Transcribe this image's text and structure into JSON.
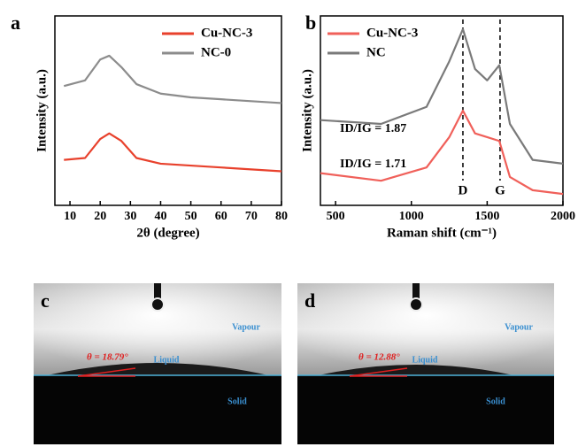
{
  "chart_data": [
    {
      "type": "line",
      "panel": "a",
      "x_label": "2θ (degree)",
      "y_label": "Intensity (a.u.)",
      "xlim": [
        5,
        80
      ],
      "ylim": [
        0,
        100
      ],
      "xticks": [
        10,
        20,
        30,
        40,
        50,
        60,
        70,
        80
      ],
      "legend": "upper right",
      "x": [
        8,
        15,
        20,
        23,
        27,
        32,
        40,
        50,
        60,
        70,
        80
      ],
      "series": [
        {
          "name": "Cu-NC-3",
          "color": "#e8412c",
          "values": [
            24,
            25,
            35,
            38,
            34,
            25,
            22,
            21,
            20,
            19,
            18
          ]
        },
        {
          "name": "NC-0",
          "color": "#8c8c8c",
          "values": [
            63,
            66,
            77,
            79,
            73,
            64,
            59,
            57,
            56,
            55,
            54
          ]
        }
      ]
    },
    {
      "type": "line",
      "panel": "b",
      "x_label": "Raman shift (cm⁻¹)",
      "y_label": "Intensity (a.u.)",
      "xlim": [
        400,
        2000
      ],
      "ylim": [
        0,
        100
      ],
      "xticks": [
        500,
        1000,
        1500,
        2000
      ],
      "legend": "upper left",
      "x": [
        400,
        800,
        1100,
        1250,
        1340,
        1420,
        1500,
        1580,
        1650,
        1800,
        2000
      ],
      "series": [
        {
          "name": "Cu-NC-3",
          "color": "#f0605a",
          "values": [
            17,
            13,
            20,
            36,
            50,
            38,
            36,
            34,
            15,
            8,
            6
          ]
        },
        {
          "name": "NC",
          "color": "#7a7a7a",
          "values": [
            45,
            43,
            52,
            76,
            93,
            72,
            66,
            74,
            43,
            24,
            22
          ]
        }
      ],
      "peaks": [
        {
          "label": "D",
          "x": 1340
        },
        {
          "label": "G",
          "x": 1585
        }
      ],
      "annotations": [
        "ID/IG = 1.87",
        "ID/IG = 1.71"
      ]
    }
  ],
  "photos": [
    {
      "panel": "c",
      "angle": "θ = 18.79°",
      "vapour": "Vapour",
      "liquid": "Liquid",
      "solid": "Solid"
    },
    {
      "panel": "d",
      "angle": "θ = 12.88°",
      "vapour": "Vapour",
      "liquid": "Liquid",
      "solid": "Solid"
    }
  ]
}
